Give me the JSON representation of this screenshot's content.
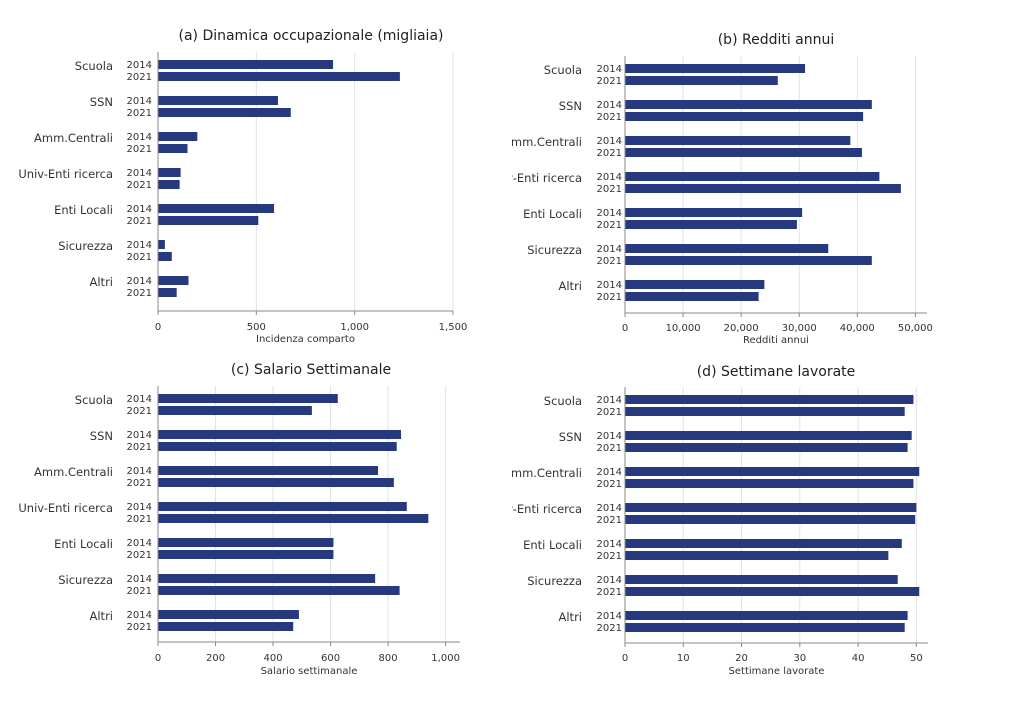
{
  "colors": {
    "bar": "#26397f",
    "grid": "#e2e2e2",
    "axis": "#888888"
  },
  "chart_data": [
    {
      "type": "bar",
      "orientation": "horizontal",
      "title": "(a) Dinamica occupazionale (migliaia)",
      "xlabel": "Incidenza comparto",
      "categories": [
        "Scuola",
        "SSN",
        "Amm.Centrali",
        "Univ-Enti ricerca",
        "Enti Locali",
        "Sicurezza",
        "Altri"
      ],
      "series": [
        {
          "name": "2014",
          "values": [
            890,
            610,
            200,
            115,
            590,
            35,
            155
          ]
        },
        {
          "name": "2021",
          "values": [
            1230,
            675,
            150,
            110,
            510,
            70,
            95
          ]
        }
      ],
      "xlim": [
        0,
        1500
      ],
      "xticks": [
        0,
        500,
        1000,
        1500
      ],
      "xtick_labels": [
        "0",
        "500",
        "1,000",
        "1,500"
      ],
      "grid": true
    },
    {
      "type": "bar",
      "orientation": "horizontal",
      "title": "(b) Redditi annui",
      "xlabel": "Redditi annui",
      "categories": [
        "Scuola",
        "SSN",
        "Amm.Centrali",
        "Univ-Enti ricerca",
        "Enti Locali",
        "Sicurezza",
        "Altri"
      ],
      "series": [
        {
          "name": "2014",
          "values": [
            31000,
            42500,
            38800,
            43800,
            30500,
            35000,
            24000
          ]
        },
        {
          "name": "2021",
          "values": [
            26300,
            41000,
            40800,
            47500,
            29600,
            42500,
            23000
          ]
        }
      ],
      "xlim": [
        0,
        52000
      ],
      "xticks": [
        0,
        10000,
        20000,
        30000,
        40000,
        50000
      ],
      "xtick_labels": [
        "0",
        "10,000",
        "20,000",
        "30,000",
        "40,000",
        "50,000"
      ],
      "grid": true
    },
    {
      "type": "bar",
      "orientation": "horizontal",
      "title": "(c) Salario Settimanale",
      "xlabel": "Salario settimanale",
      "categories": [
        "Scuola",
        "SSN",
        "Amm.Centrali",
        "Univ-Enti ricerca",
        "Enti Locali",
        "Sicurezza",
        "Altri"
      ],
      "series": [
        {
          "name": "2014",
          "values": [
            625,
            845,
            765,
            865,
            610,
            755,
            490
          ]
        },
        {
          "name": "2021",
          "values": [
            535,
            830,
            820,
            940,
            610,
            840,
            470
          ]
        }
      ],
      "xlim": [
        0,
        1050
      ],
      "xticks": [
        0,
        200,
        400,
        600,
        800,
        1000
      ],
      "xtick_labels": [
        "0",
        "200",
        "400",
        "600",
        "800",
        "1,000"
      ],
      "grid": true
    },
    {
      "type": "bar",
      "orientation": "horizontal",
      "title": "(d) Settimane lavorate",
      "xlabel": "Settimane lavorate",
      "categories": [
        "Scuola",
        "SSN",
        "Amm.Centrali",
        "Univ-Enti ricerca",
        "Enti Locali",
        "Sicurezza",
        "Altri"
      ],
      "series": [
        {
          "name": "2014",
          "values": [
            49.5,
            49.2,
            50.5,
            50.0,
            47.5,
            46.8,
            48.5
          ]
        },
        {
          "name": "2021",
          "values": [
            48.0,
            48.5,
            49.5,
            49.8,
            45.2,
            50.5,
            48.0
          ]
        }
      ],
      "xlim": [
        0,
        52
      ],
      "xticks": [
        0,
        10,
        20,
        30,
        40,
        50
      ],
      "xtick_labels": [
        "0",
        "10",
        "20",
        "30",
        "40",
        "50"
      ],
      "grid": true
    }
  ]
}
